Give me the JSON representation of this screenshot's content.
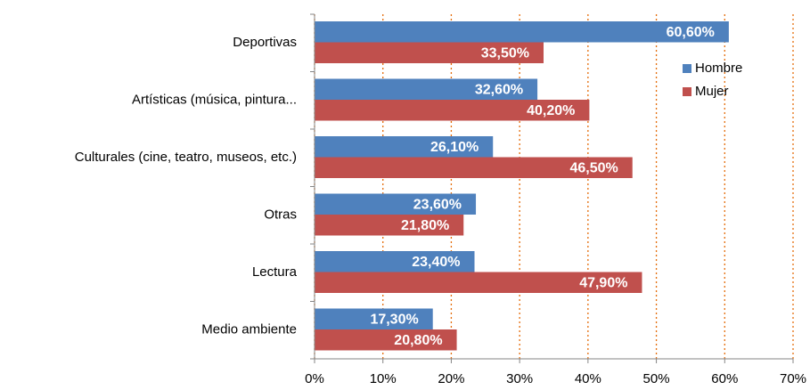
{
  "chart_data": {
    "type": "bar",
    "orientation": "horizontal",
    "categories": [
      "Deportivas",
      "Artísticas (música, pintura...",
      "Culturales (cine, teatro, museos, etc.)",
      "Otras",
      "Lectura",
      "Medio ambiente"
    ],
    "series": [
      {
        "name": "Hombre",
        "color": "#4f81bd",
        "values": [
          60.6,
          32.6,
          26.1,
          23.6,
          23.4,
          17.3
        ],
        "value_labels": [
          "60,60%",
          "32,60%",
          "26,10%",
          "23,60%",
          "23,40%",
          "17,30%"
        ]
      },
      {
        "name": "Mujer",
        "color": "#c0504d",
        "values": [
          33.5,
          40.2,
          46.5,
          21.8,
          47.9,
          20.8
        ],
        "value_labels": [
          "33,50%",
          "40,20%",
          "46,50%",
          "21,80%",
          "47,90%",
          "20,80%"
        ]
      }
    ],
    "xlim": [
      0,
      70
    ],
    "xticks": [
      {
        "value": 0,
        "label": "0%"
      },
      {
        "value": 10,
        "label": "10%"
      },
      {
        "value": 20,
        "label": "20%"
      },
      {
        "value": 30,
        "label": "30%"
      },
      {
        "value": 40,
        "label": "40%"
      },
      {
        "value": 50,
        "label": "50%"
      },
      {
        "value": 60,
        "label": "60%"
      },
      {
        "value": 70,
        "label": "70%"
      }
    ],
    "grid": true,
    "grid_color": "#e46c0a"
  }
}
